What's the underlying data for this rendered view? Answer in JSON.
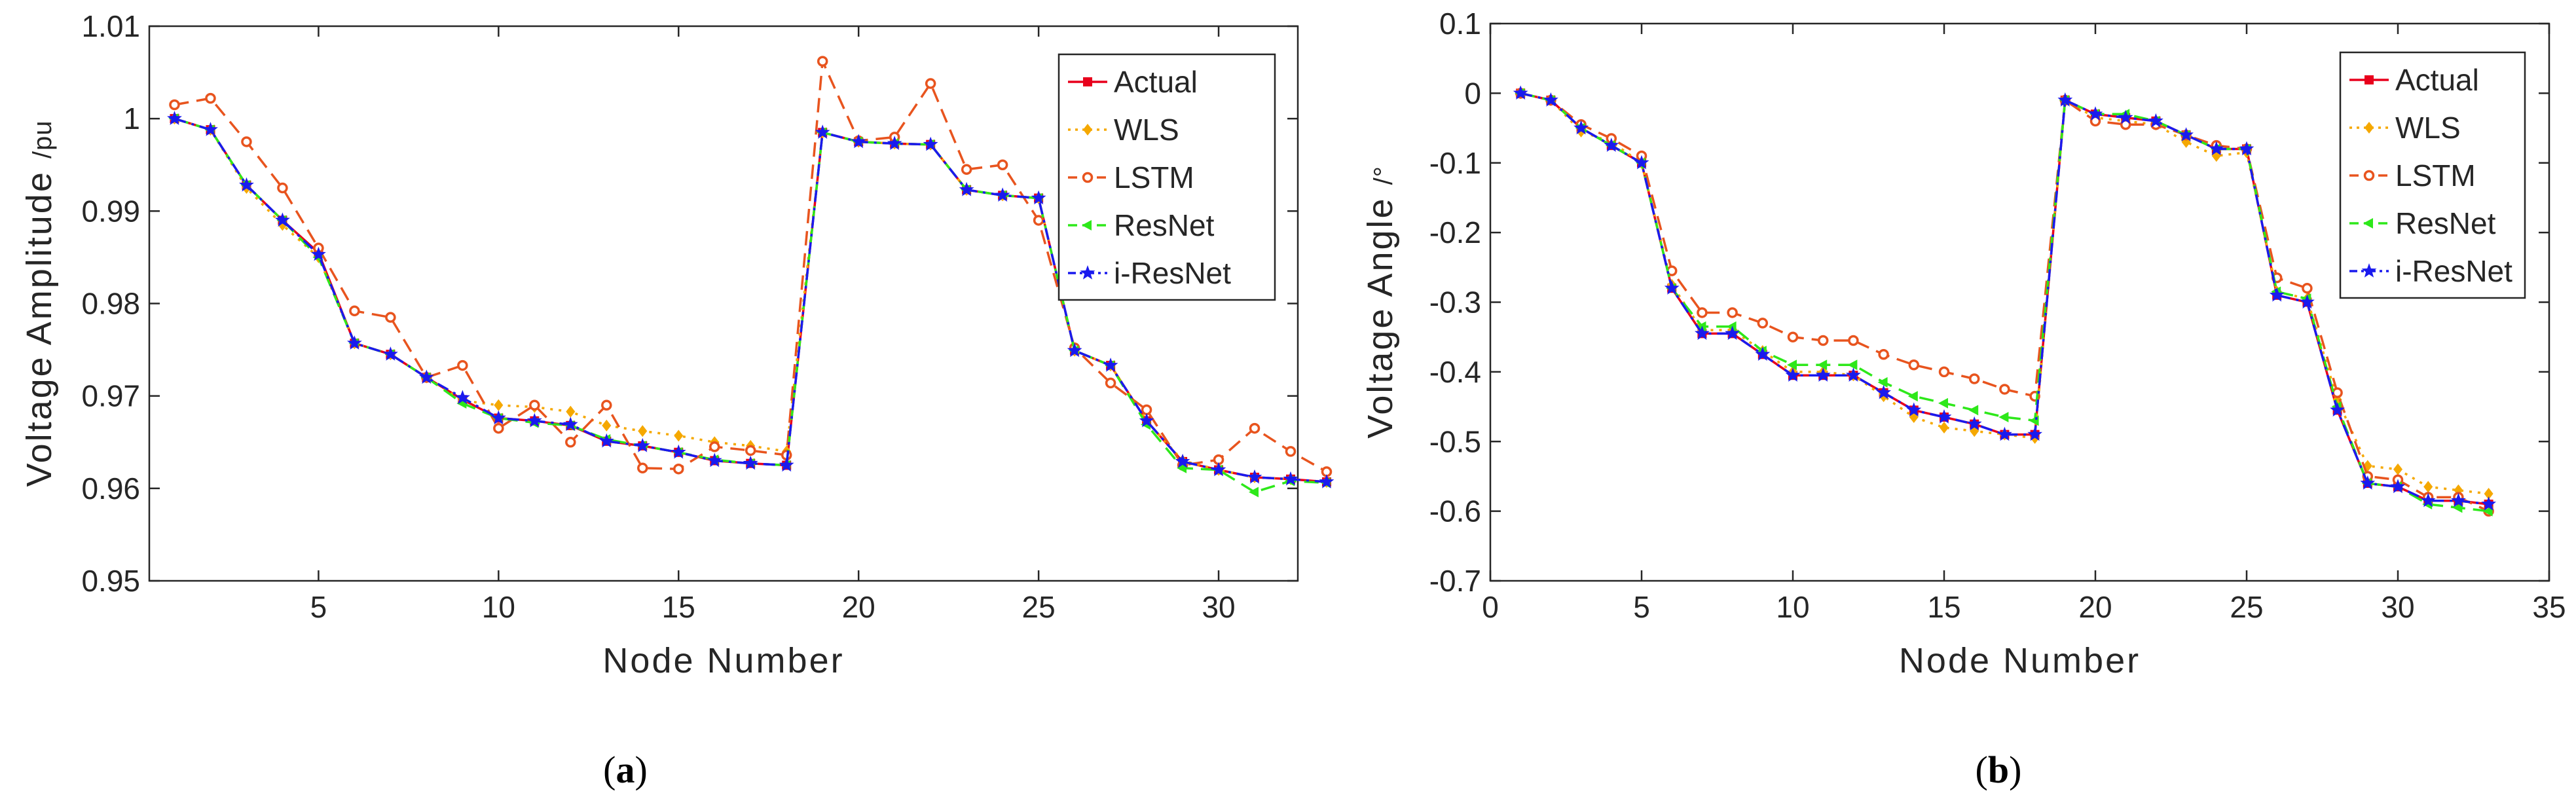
{
  "chart_data": [
    {
      "type": "line",
      "caption_open": "(",
      "caption_letter": "a",
      "caption_close": ")",
      "xlabel": "Node Number",
      "ylabel": "Voltage Amplitude",
      "ylabel_unit": "/pu",
      "xlim": [
        0.3,
        32.2
      ],
      "ylim": [
        0.95,
        1.01
      ],
      "xticks": [
        5,
        10,
        15,
        20,
        25,
        30
      ],
      "yticks": [
        0.95,
        0.96,
        0.97,
        0.98,
        0.99,
        1,
        1.01
      ],
      "ytick_labels": [
        "0.95",
        "0.96",
        "0.97",
        "0.98",
        "0.99",
        "1",
        "1.01"
      ],
      "grid": false,
      "legend_position": "top-right",
      "x": [
        1,
        2,
        3,
        4,
        5,
        6,
        7,
        8,
        9,
        10,
        11,
        12,
        13,
        14,
        15,
        16,
        17,
        18,
        19,
        20,
        21,
        22,
        23,
        24,
        25,
        26,
        27,
        28,
        29,
        30,
        31,
        32,
        33
      ],
      "series": [
        {
          "name": "Actual",
          "color": "#e8001c",
          "marker": "square",
          "dash": "solid",
          "values": [
            1.0,
            0.9988,
            0.9928,
            0.989,
            0.9855,
            0.9757,
            0.9745,
            0.972,
            0.9696,
            0.9676,
            0.9673,
            0.9668,
            0.9651,
            0.9646,
            0.9639,
            0.963,
            0.9627,
            0.9625,
            0.9985,
            0.9975,
            0.9973,
            0.9972,
            0.9923,
            0.9917,
            0.9914,
            0.9749,
            0.9733,
            0.9673,
            0.9629,
            0.962,
            0.9612,
            0.961,
            0.9607
          ]
        },
        {
          "name": "WLS",
          "color": "#f5a800",
          "marker": "diamond",
          "dash": "dotted",
          "values": [
            1.0,
            0.9988,
            0.9925,
            0.9885,
            0.985,
            0.9757,
            0.9745,
            0.972,
            0.9695,
            0.969,
            0.9688,
            0.9683,
            0.9668,
            0.9662,
            0.9657,
            0.965,
            0.9646,
            0.964,
            0.9985,
            0.9975,
            0.9973,
            0.9972,
            0.9923,
            0.9917,
            0.9914,
            0.9749,
            0.9733,
            0.9673,
            0.963,
            0.962,
            0.9612,
            0.961,
            0.9607
          ]
        },
        {
          "name": "LSTM",
          "color": "#e8541e",
          "marker": "circle",
          "dash": "dashed",
          "values": [
            1.0015,
            1.0022,
            0.9975,
            0.9925,
            0.986,
            0.9792,
            0.9785,
            0.972,
            0.9733,
            0.9665,
            0.969,
            0.965,
            0.969,
            0.9622,
            0.9621,
            0.9645,
            0.9641,
            0.9636,
            1.0062,
            0.9976,
            0.998,
            1.0038,
            0.9945,
            0.995,
            0.989,
            0.9752,
            0.9714,
            0.9685,
            0.9625,
            0.9631,
            0.9665,
            0.964,
            0.9618
          ]
        },
        {
          "name": "ResNet",
          "color": "#2ee81a",
          "marker": "triangle",
          "dash": "dashed",
          "values": [
            1.0,
            0.9988,
            0.9928,
            0.989,
            0.985,
            0.9757,
            0.9745,
            0.972,
            0.9692,
            0.9676,
            0.9671,
            0.9668,
            0.9653,
            0.9646,
            0.9639,
            0.9631,
            0.9627,
            0.9625,
            0.9985,
            0.9975,
            0.9973,
            0.9972,
            0.9923,
            0.9917,
            0.9914,
            0.9749,
            0.9733,
            0.9669,
            0.9622,
            0.962,
            0.9596,
            0.9608,
            0.9606
          ]
        },
        {
          "name": "i-ResNet",
          "color": "#1a1aee",
          "marker": "star",
          "dash": "dashdot",
          "values": [
            1.0,
            0.9988,
            0.9928,
            0.989,
            0.9853,
            0.9757,
            0.9745,
            0.972,
            0.9698,
            0.9676,
            0.9673,
            0.9669,
            0.9651,
            0.9646,
            0.9639,
            0.963,
            0.9627,
            0.9625,
            0.9985,
            0.9975,
            0.9973,
            0.9972,
            0.9923,
            0.9917,
            0.9914,
            0.9749,
            0.9733,
            0.9673,
            0.9629,
            0.962,
            0.9612,
            0.961,
            0.9607
          ]
        }
      ]
    },
    {
      "type": "line",
      "caption_open": "(",
      "caption_letter": "b",
      "caption_close": ")",
      "xlabel": "Node Number",
      "ylabel": "Voltage Angle",
      "ylabel_unit": "/°",
      "xlim": [
        0,
        35
      ],
      "ylim": [
        -0.7,
        0.1
      ],
      "xticks": [
        0,
        5,
        10,
        15,
        20,
        25,
        30,
        35
      ],
      "yticks": [
        -0.7,
        -0.6,
        -0.5,
        -0.4,
        -0.3,
        -0.2,
        -0.1,
        0,
        0.1
      ],
      "ytick_labels": [
        "-0.7",
        "-0.6",
        "-0.5",
        "-0.4",
        "-0.3",
        "-0.2",
        "-0.1",
        "0",
        "0.1"
      ],
      "grid": false,
      "legend_position": "top-right",
      "x": [
        1,
        2,
        3,
        4,
        5,
        6,
        7,
        8,
        9,
        10,
        11,
        12,
        13,
        14,
        15,
        16,
        17,
        18,
        19,
        20,
        21,
        22,
        23,
        24,
        25,
        26,
        27,
        28,
        29,
        30,
        31,
        32,
        33
      ],
      "series": [
        {
          "name": "Actual",
          "color": "#e8001c",
          "marker": "square",
          "dash": "solid",
          "values": [
            0,
            -0.01,
            -0.05,
            -0.075,
            -0.1,
            -0.28,
            -0.345,
            -0.345,
            -0.375,
            -0.405,
            -0.405,
            -0.405,
            -0.43,
            -0.455,
            -0.465,
            -0.475,
            -0.49,
            -0.49,
            -0.01,
            -0.03,
            -0.035,
            -0.04,
            -0.06,
            -0.08,
            -0.08,
            -0.29,
            -0.3,
            -0.455,
            -0.56,
            -0.565,
            -0.585,
            -0.585,
            -0.59
          ]
        },
        {
          "name": "WLS",
          "color": "#f5a800",
          "marker": "diamond",
          "dash": "dotted",
          "values": [
            0,
            -0.01,
            -0.055,
            -0.07,
            -0.1,
            -0.275,
            -0.34,
            -0.34,
            -0.37,
            -0.4,
            -0.4,
            -0.405,
            -0.435,
            -0.465,
            -0.48,
            -0.485,
            -0.49,
            -0.495,
            -0.01,
            -0.035,
            -0.04,
            -0.045,
            -0.07,
            -0.09,
            -0.085,
            -0.285,
            -0.295,
            -0.44,
            -0.535,
            -0.54,
            -0.565,
            -0.57,
            -0.575
          ]
        },
        {
          "name": "LSTM",
          "color": "#e8541e",
          "marker": "circle",
          "dash": "dashed",
          "values": [
            0,
            -0.01,
            -0.045,
            -0.065,
            -0.09,
            -0.255,
            -0.315,
            -0.315,
            -0.33,
            -0.35,
            -0.355,
            -0.355,
            -0.375,
            -0.39,
            -0.4,
            -0.41,
            -0.425,
            -0.435,
            -0.01,
            -0.04,
            -0.045,
            -0.045,
            -0.06,
            -0.075,
            -0.08,
            -0.265,
            -0.28,
            -0.43,
            -0.55,
            -0.555,
            -0.58,
            -0.58,
            -0.6
          ]
        },
        {
          "name": "ResNet",
          "color": "#2ee81a",
          "marker": "triangle",
          "dash": "dashed",
          "values": [
            0,
            -0.01,
            -0.05,
            -0.075,
            -0.1,
            -0.28,
            -0.335,
            -0.335,
            -0.37,
            -0.39,
            -0.39,
            -0.39,
            -0.415,
            -0.435,
            -0.445,
            -0.455,
            -0.465,
            -0.47,
            -0.01,
            -0.03,
            -0.03,
            -0.04,
            -0.06,
            -0.08,
            -0.08,
            -0.285,
            -0.295,
            -0.45,
            -0.56,
            -0.565,
            -0.59,
            -0.595,
            -0.6
          ]
        },
        {
          "name": "i-ResNet",
          "color": "#1a1aee",
          "marker": "star",
          "dash": "dashdot",
          "values": [
            0,
            -0.01,
            -0.05,
            -0.075,
            -0.1,
            -0.28,
            -0.345,
            -0.345,
            -0.375,
            -0.405,
            -0.405,
            -0.405,
            -0.43,
            -0.455,
            -0.465,
            -0.475,
            -0.49,
            -0.49,
            -0.01,
            -0.03,
            -0.035,
            -0.04,
            -0.06,
            -0.08,
            -0.08,
            -0.29,
            -0.3,
            -0.455,
            -0.56,
            -0.565,
            -0.585,
            -0.585,
            -0.59
          ]
        }
      ]
    }
  ]
}
